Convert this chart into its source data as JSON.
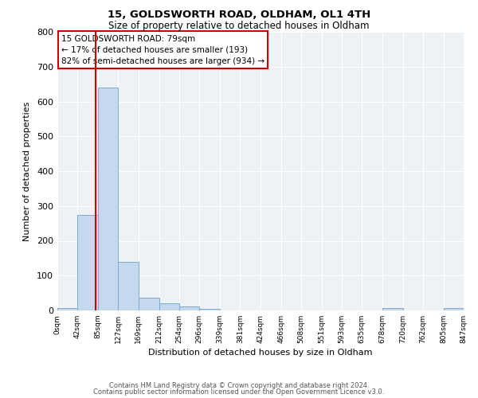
{
  "title1": "15, GOLDSWORTH ROAD, OLDHAM, OL1 4TH",
  "title2": "Size of property relative to detached houses in Oldham",
  "xlabel": "Distribution of detached houses by size in Oldham",
  "ylabel": "Number of detached properties",
  "bin_edges": [
    0,
    42,
    85,
    127,
    169,
    212,
    254,
    296,
    339,
    381,
    424,
    466,
    508,
    551,
    593,
    635,
    678,
    720,
    762,
    805,
    847
  ],
  "bin_labels": [
    "0sqm",
    "42sqm",
    "85sqm",
    "127sqm",
    "169sqm",
    "212sqm",
    "254sqm",
    "296sqm",
    "339sqm",
    "381sqm",
    "424sqm",
    "466sqm",
    "508sqm",
    "551sqm",
    "593sqm",
    "635sqm",
    "678sqm",
    "720sqm",
    "762sqm",
    "805sqm",
    "847sqm"
  ],
  "bar_heights": [
    8,
    275,
    640,
    140,
    37,
    20,
    12,
    5,
    0,
    0,
    0,
    0,
    0,
    0,
    0,
    0,
    8,
    0,
    0,
    8
  ],
  "bar_color": "#c5d8ed",
  "bar_edgecolor": "#7aadd4",
  "property_size": 79,
  "vline_color": "#cc0000",
  "annotation_title": "15 GOLDSWORTH ROAD: 79sqm",
  "annotation_line1": "← 17% of detached houses are smaller (193)",
  "annotation_line2": "82% of semi-detached houses are larger (934) →",
  "annotation_box_edgecolor": "#cc0000",
  "ylim": [
    0,
    800
  ],
  "yticks": [
    0,
    100,
    200,
    300,
    400,
    500,
    600,
    700,
    800
  ],
  "footer1": "Contains HM Land Registry data © Crown copyright and database right 2024.",
  "footer2": "Contains public sector information licensed under the Open Government Licence v3.0.",
  "bg_color": "#eef2f7"
}
